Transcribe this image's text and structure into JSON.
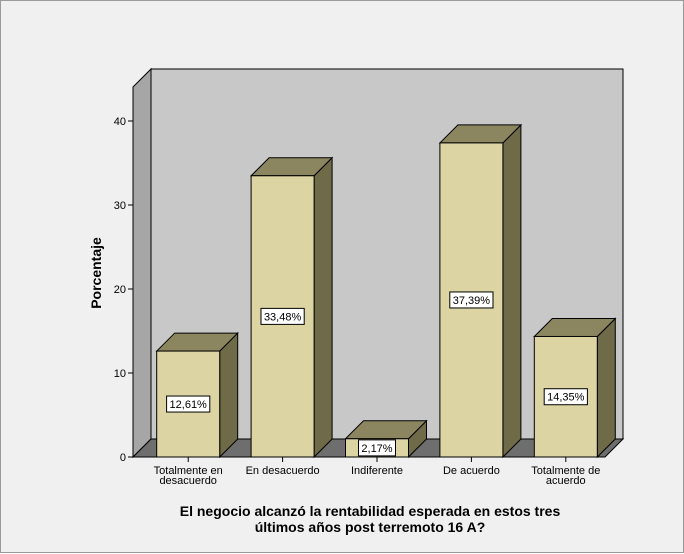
{
  "chart_data": {
    "type": "bar",
    "categories": [
      [
        "Totalmente en",
        "desacuerdo"
      ],
      [
        "En desacuerdo"
      ],
      [
        "Indiferente"
      ],
      [
        "De acuerdo"
      ],
      [
        "Totalmente de",
        "acuerdo"
      ]
    ],
    "values": [
      12.61,
      33.48,
      2.17,
      37.39,
      14.35
    ],
    "data_labels": [
      "12,61%",
      "33,48%",
      "2,17%",
      "37,39%",
      "14,35%"
    ],
    "ylabel": "Porcentaje",
    "xlabel_lines": [
      "El negocio alcanzó la rentabilidad esperada en estos tres",
      "últimos años post terremoto 16 A?"
    ],
    "ylim": [
      0,
      40
    ],
    "yticks": [
      0,
      10,
      20,
      30,
      40
    ],
    "grid": false,
    "style": "3d",
    "colors": {
      "bar_front": "#dcd5a3",
      "bar_top": "#8c8660",
      "bar_side": "#6f6a48",
      "back_wall": "#c8c8c8",
      "side_wall": "#a6a6a6",
      "floor": "#6e6e6e",
      "frame_bg": "#f0f0f0"
    }
  }
}
